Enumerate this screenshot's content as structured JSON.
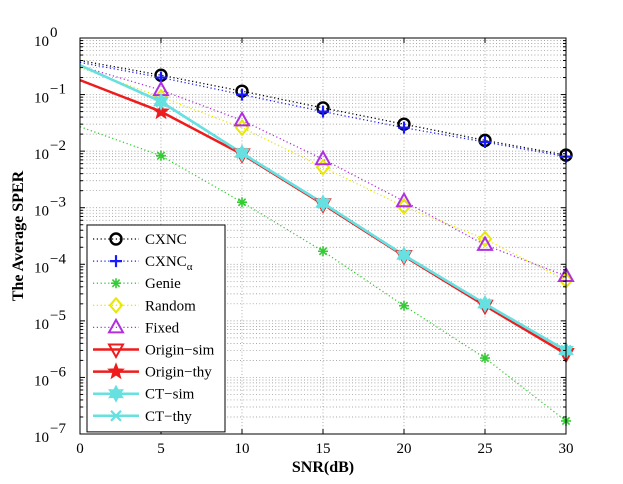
{
  "chart_data": {
    "type": "line",
    "title": "",
    "xlabel": "SNR(dB)",
    "ylabel": "The Average SPER",
    "xlim": [
      0,
      30
    ],
    "ylim_log10": [
      -7,
      0
    ],
    "yscale": "log",
    "grid": true,
    "legend_position": "bottom-left",
    "x_ticks": [
      0,
      5,
      10,
      15,
      20,
      25,
      30
    ],
    "x_tick_labels": [
      "0",
      "5",
      "10",
      "15",
      "20",
      "25",
      "30"
    ],
    "y_tick_exponents": [
      0,
      -1,
      -2,
      -3,
      -4,
      -5,
      -6,
      -7
    ],
    "y_tick_labels": [
      {
        "base": "10",
        "exp": "0"
      },
      {
        "base": "10",
        "exp": "−1"
      },
      {
        "base": "10",
        "exp": "−2"
      },
      {
        "base": "10",
        "exp": "−3"
      },
      {
        "base": "10",
        "exp": "−4"
      },
      {
        "base": "10",
        "exp": "−5"
      },
      {
        "base": "10",
        "exp": "−6"
      },
      {
        "base": "10",
        "exp": "−7"
      }
    ],
    "series": [
      {
        "name": "CXNC",
        "name_sub": "",
        "color": "#000000",
        "line": "dotted",
        "line_width": 1.3,
        "marker": "circle",
        "x": [
          0,
          5,
          10,
          15,
          20,
          25,
          30
        ],
        "y": [
          0.4,
          0.22,
          0.115,
          0.058,
          0.03,
          0.0155,
          0.0085
        ],
        "marker_x": [
          5,
          10,
          15,
          20,
          25,
          30
        ],
        "marker_y": [
          0.22,
          0.115,
          0.058,
          0.03,
          0.0155,
          0.0085
        ]
      },
      {
        "name": "CXNC",
        "name_sub": "α",
        "color": "#1a1aff",
        "line": "dotted",
        "line_width": 1.3,
        "marker": "plus",
        "x": [
          0,
          5,
          10,
          15,
          20,
          25,
          30
        ],
        "y": [
          0.37,
          0.2,
          0.1,
          0.05,
          0.026,
          0.0145,
          0.008
        ],
        "marker_x": [
          5,
          10,
          15,
          20,
          25,
          30
        ],
        "marker_y": [
          0.2,
          0.1,
          0.05,
          0.026,
          0.0145,
          0.008
        ]
      },
      {
        "name": "Genie",
        "name_sub": "",
        "color": "#33cc33",
        "line": "dotted",
        "line_width": 1.3,
        "marker": "asterisk",
        "x": [
          0,
          5,
          10,
          15,
          20,
          25,
          30
        ],
        "y": [
          0.027,
          0.0083,
          0.00125,
          0.00017,
          1.85e-05,
          2.2e-06,
          1.7e-07
        ],
        "marker_x": [
          5,
          10,
          15,
          20,
          25,
          30
        ],
        "marker_y": [
          0.0083,
          0.00125,
          0.00017,
          1.85e-05,
          2.2e-06,
          1.7e-07
        ]
      },
      {
        "name": "Random",
        "name_sub": "",
        "color": "#e8e800",
        "line": "dotted",
        "line_width": 1.3,
        "marker": "diamond",
        "x": [
          0,
          5,
          10,
          15,
          20,
          25,
          30
        ],
        "y": [
          0.3,
          0.09,
          0.026,
          0.0052,
          0.00105,
          0.00028,
          5.2e-05
        ],
        "marker_x": [
          5,
          10,
          15,
          20,
          25,
          30
        ],
        "marker_y": [
          0.09,
          0.026,
          0.0052,
          0.00105,
          0.00028,
          5.2e-05
        ]
      },
      {
        "name": "Fixed",
        "name_sub": "",
        "color": "#b030e0",
        "line": "dotted",
        "line_width": 1.3,
        "marker": "triangle-up",
        "x": [
          0,
          5,
          10,
          15,
          20,
          25,
          30
        ],
        "y": [
          0.32,
          0.12,
          0.035,
          0.0072,
          0.0013,
          0.00022,
          6.2e-05
        ],
        "marker_x": [
          5,
          10,
          15,
          20,
          25,
          30
        ],
        "marker_y": [
          0.12,
          0.035,
          0.0072,
          0.0013,
          0.00022,
          6.2e-05
        ]
      },
      {
        "name": "Origin−sim",
        "name_sub": "",
        "color": "#ee1c1c",
        "line": "solid",
        "line_width": 2.5,
        "marker": "triangle-down",
        "x": [
          10,
          15,
          20,
          25,
          30
        ],
        "y": [
          0.0088,
          0.00115,
          0.00014,
          1.85e-05,
          2.6e-06
        ],
        "marker_x": [
          10,
          15,
          20,
          25,
          30
        ],
        "marker_y": [
          0.0088,
          0.00115,
          0.00014,
          1.85e-05,
          2.6e-06
        ]
      },
      {
        "name": "Origin−thy",
        "name_sub": "",
        "color": "#ee1c1c",
        "line": "solid",
        "line_width": 2.5,
        "marker": "star",
        "x": [
          0,
          5,
          10
        ],
        "y": [
          0.18,
          0.05,
          0.0088
        ],
        "marker_x": [
          5
        ],
        "marker_y": [
          0.05
        ]
      },
      {
        "name": "CT−sim",
        "name_sub": "",
        "color": "#66e0e0",
        "line": "solid",
        "line_width": 2.5,
        "marker": "hexagram",
        "x": [
          0,
          5,
          10,
          15,
          20,
          25,
          30
        ],
        "y": [
          0.33,
          0.075,
          0.0092,
          0.0012,
          0.000145,
          2e-05,
          3e-06
        ],
        "marker_x": [
          5,
          10,
          15,
          20,
          25,
          30
        ],
        "marker_y": [
          0.075,
          0.0092,
          0.0012,
          0.000145,
          2e-05,
          3e-06
        ]
      },
      {
        "name": "CT−thy",
        "name_sub": "",
        "color": "#66e0e0",
        "line": "solid",
        "line_width": 2.5,
        "marker": "x",
        "x": [
          0,
          5,
          10,
          15,
          20,
          25,
          30
        ],
        "y": [
          0.33,
          0.075,
          0.0092,
          0.0012,
          0.000145,
          2e-05,
          3e-06
        ],
        "marker_x": [
          5,
          10,
          15,
          20,
          25,
          30
        ],
        "marker_y": [
          0.075,
          0.0092,
          0.0012,
          0.000145,
          2e-05,
          3e-06
        ]
      }
    ]
  }
}
